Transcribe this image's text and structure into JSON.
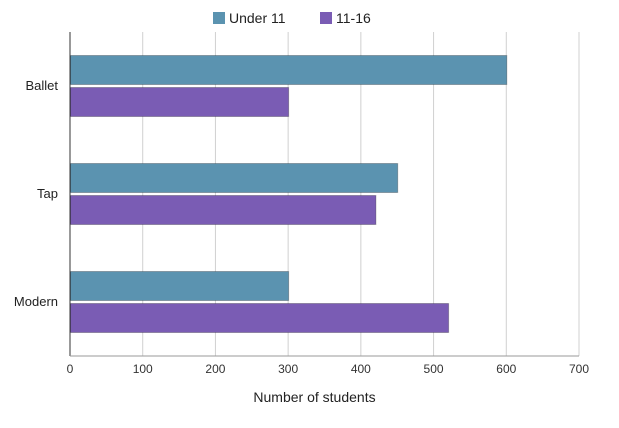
{
  "chart_data": {
    "type": "bar",
    "orientation": "horizontal",
    "categories": [
      "Ballet",
      "Tap",
      "Modern"
    ],
    "series": [
      {
        "name": "Under 11",
        "values": [
          600,
          450,
          300
        ],
        "color": "#5b93b0"
      },
      {
        "name": "11-16",
        "values": [
          300,
          420,
          520
        ],
        "color": "#7a5cb4"
      }
    ],
    "xlabel": "Number of students",
    "ylabel": "",
    "xlim": [
      0,
      700
    ],
    "x_ticks": [
      "0",
      "100",
      "200",
      "300",
      "400",
      "500",
      "600",
      "700"
    ],
    "grid": true,
    "legend_position": "top-center"
  }
}
